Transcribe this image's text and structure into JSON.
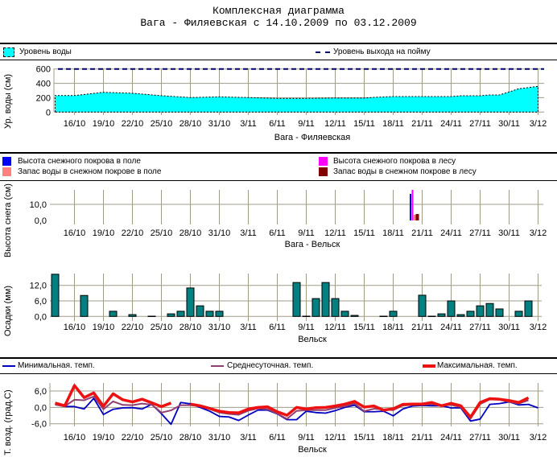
{
  "header": {
    "title": "Комплексная диаграмма",
    "subtitle": "Вага - Филяевская с 14.10.2009 по 03.12.2009"
  },
  "legends": {
    "water": [
      {
        "label": "Уровень воды",
        "color": "#00ffff",
        "icon": "area-swatch"
      },
      {
        "label": "Уровень выхода на пойму",
        "color": "#000066",
        "icon": "dashed-line"
      }
    ],
    "snow": [
      {
        "label": "Высота снежного покрова в поле",
        "color": "#0000ff"
      },
      {
        "label": "Запас воды в снежном покрове в поле",
        "color": "#ff8080"
      },
      {
        "label": "Высота снежного покрова в лесу",
        "color": "#ff00ff"
      },
      {
        "label": "Запас воды в снежном покрове в лесу",
        "color": "#800000"
      }
    ],
    "temp": [
      {
        "label": "Минимальная. темп.",
        "color": "#0000c0"
      },
      {
        "label": "Среднесуточная. темп.",
        "color": "#904070"
      },
      {
        "label": "Максимальная. темп.",
        "color": "#ee1111"
      }
    ]
  },
  "chart_data": [
    {
      "type": "area",
      "title": "Уровень воды",
      "ylabel": "Ур. воды (см)",
      "xlabel": "Вага - Филяевская",
      "ylim": [
        0,
        600
      ],
      "yticks": [
        "0",
        "200",
        "400",
        "600"
      ],
      "x_ticks": [
        "16/10",
        "19/10",
        "22/10",
        "25/10",
        "28/10",
        "31/10",
        "3/11",
        "6/11",
        "9/11",
        "12/11",
        "15/11",
        "18/11",
        "21/11",
        "24/11",
        "27/11",
        "30/11",
        "3/12"
      ],
      "grid": true,
      "series": [
        {
          "name": "Уровень воды",
          "color": "#00ffff",
          "x": [
            "14/10",
            "16/10",
            "19/10",
            "22/10",
            "25/10",
            "28/10",
            "31/10",
            "3/11",
            "6/11",
            "9/11",
            "12/11",
            "15/11",
            "16/11",
            "18/11",
            "21/11",
            "24/11",
            "25/11",
            "27/11",
            "28/11",
            "29/11",
            "30/11",
            "1/12",
            "3/12"
          ],
          "values": [
            230,
            230,
            275,
            262,
            228,
            202,
            212,
            202,
            190,
            190,
            195,
            195,
            205,
            216,
            216,
            216,
            227,
            227,
            239,
            239,
            280,
            325,
            358
          ]
        },
        {
          "name": "Уровень выхода на пойму",
          "color": "#000066",
          "constant": 600
        }
      ]
    },
    {
      "type": "bar",
      "title": "Снежный покров",
      "ylabel": "Высота снега (см)",
      "xlabel": "Вага - Вельск",
      "ylim": [
        0,
        20
      ],
      "yticks": [
        "0,0",
        "10,0"
      ],
      "x_ticks": [
        "16/10",
        "19/10",
        "22/10",
        "25/10",
        "28/10",
        "31/10",
        "3/11",
        "6/11",
        "9/11",
        "12/11",
        "15/11",
        "18/11",
        "21/11",
        "24/11",
        "27/11",
        "30/11",
        "3/12"
      ],
      "grid": true,
      "categories": [
        "20/11"
      ],
      "series": [
        {
          "name": "Высота снежного покрова в поле",
          "color": "#0000ff",
          "values": [
            16.5
          ]
        },
        {
          "name": "Высота снежного покрова в лесу",
          "color": "#ff00ff",
          "values": [
            19
          ]
        },
        {
          "name": "Запас воды в снежном покрове в поле",
          "color": "#ff8080",
          "values": [
            3.5
          ]
        },
        {
          "name": "Запас воды в снежном покрове в лесу",
          "color": "#800000",
          "values": [
            4
          ]
        }
      ]
    },
    {
      "type": "bar",
      "title": "Осадки",
      "ylabel": "Осадки (мм)",
      "xlabel": "Вельск",
      "ylim": [
        0,
        16.5
      ],
      "yticks": [
        "0,0",
        "6,0",
        "12,0"
      ],
      "x_ticks": [
        "16/10",
        "19/10",
        "22/10",
        "25/10",
        "28/10",
        "31/10",
        "3/11",
        "6/11",
        "9/11",
        "12/11",
        "15/11",
        "18/11",
        "21/11",
        "24/11",
        "27/11",
        "30/11",
        "3/12"
      ],
      "grid": true,
      "color": "#008080",
      "categories": [
        "14/10",
        "17/10",
        "20/10",
        "22/10",
        "24/10",
        "26/10",
        "27/10",
        "28/10",
        "29/10",
        "30/10",
        "31/10",
        "8/11",
        "9/11",
        "10/11",
        "11/11",
        "12/11",
        "13/11",
        "14/11",
        "17/11",
        "18/11",
        "21/11",
        "22/11",
        "23/11",
        "24/11",
        "25/11",
        "26/11",
        "27/11",
        "28/11",
        "29/11",
        "1/12",
        "2/12"
      ],
      "values": [
        16.3,
        8.1,
        2.0,
        0.7,
        0.1,
        1.0,
        2.0,
        11.0,
        4.1,
        2.0,
        2.0,
        13.1,
        0.1,
        6.9,
        13.1,
        6.9,
        2.0,
        0.4,
        0.1,
        2.0,
        8.2,
        0.1,
        1.0,
        6.0,
        0.7,
        2.0,
        4.1,
        5.0,
        2.9,
        2.0,
        6.0
      ]
    },
    {
      "type": "line",
      "title": "Температура воздуха",
      "ylabel": "Т. возд. (град.С)",
      "xlabel": "Вельск",
      "ylim": [
        -7,
        9
      ],
      "yticks": [
        "-6,0",
        "0,0",
        "6,0"
      ],
      "x_ticks": [
        "16/10",
        "19/10",
        "22/10",
        "25/10",
        "28/10",
        "31/10",
        "3/11",
        "6/11",
        "9/11",
        "12/11",
        "15/11",
        "18/11",
        "21/11",
        "24/11",
        "27/11",
        "30/11",
        "3/12"
      ],
      "grid": true,
      "start_date": "14/10",
      "series": [
        {
          "name": "Минимальная. темп.",
          "color": "#0000c0",
          "values": [
            1.1,
            0.3,
            0.3,
            -0.6,
            3.3,
            -2.6,
            -0.7,
            -0.2,
            -0.1,
            -0.6,
            1.1,
            -2.3,
            -6.2,
            1.8,
            1.3,
            0.0,
            -1.4,
            -3.3,
            -3.5,
            -4.8,
            -2.8,
            -1.0,
            -1.0,
            -2.4,
            -4.5,
            -4.5,
            -1.4,
            -1.9,
            -2.1,
            -1.2,
            0.0,
            0.8,
            -1.6,
            -1.6,
            -1.4,
            -3.1,
            -0.6,
            0.5,
            0.7,
            0.6,
            0.6,
            -0.2,
            -0.2,
            -5.0,
            -4.3,
            1.1,
            1.4,
            2.0,
            0.9,
            1.1,
            -0.2
          ]
        },
        {
          "name": "Среднесуточная. темп.",
          "color": "#904070",
          "values": [
            1.0,
            0.4,
            2.8,
            2.6,
            4.0,
            -0.7,
            2.2,
            0.9,
            0.8,
            1.4,
            1.0,
            -1.9,
            -1.1,
            0.8,
            0.8,
            0.4,
            -0.6,
            -1.9,
            -2.4,
            -2.7,
            -1.2,
            -0.4,
            -0.7,
            -2.3,
            -4.2,
            -1.3,
            -1.0,
            -1.0,
            -1.0,
            -0.2,
            0.4,
            1.4,
            -1.4,
            -0.5,
            -0.8,
            -1.0,
            0.7,
            0.9,
            0.9,
            1.2,
            0.6,
            0.9,
            0.1,
            -4.2,
            1.2,
            2.9,
            2.8,
            2.0,
            1.4,
            2.6,
            null
          ]
        },
        {
          "name": "Максимальная. темп.",
          "color": "#ee1111",
          "values": [
            1.6,
            0.6,
            8.0,
            3.6,
            5.3,
            0.4,
            5.0,
            2.8,
            2.0,
            3.0,
            1.7,
            0.3,
            1.6,
            null,
            1.2,
            0.6,
            -0.4,
            -1.4,
            -1.9,
            -2.0,
            -0.6,
            0.0,
            0.2,
            -1.6,
            -2.9,
            0.0,
            -0.6,
            -0.1,
            0.0,
            0.5,
            1.2,
            2.2,
            0.1,
            0.5,
            -1.0,
            -0.5,
            1.1,
            1.2,
            1.2,
            1.8,
            0.6,
            1.5,
            0.6,
            -3.6,
            1.8,
            3.2,
            3.0,
            2.5,
            1.8,
            3.5,
            null
          ]
        }
      ]
    }
  ]
}
